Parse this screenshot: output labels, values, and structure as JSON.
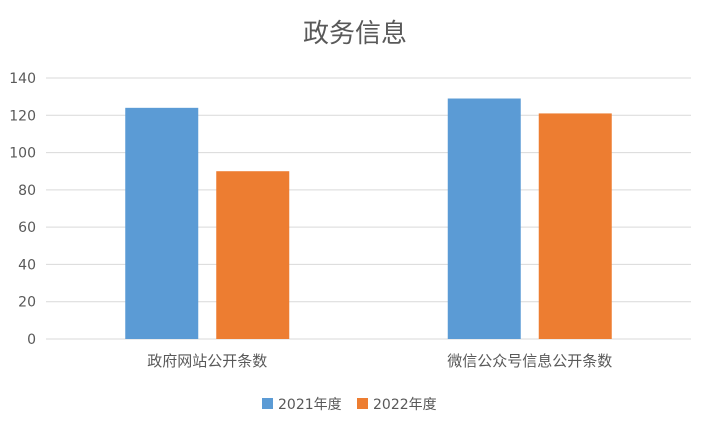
{
  "chart_data": {
    "type": "bar",
    "title": "政务信息",
    "categories": [
      "政府网站公开条数",
      "微信公众号信息公开条数"
    ],
    "series": [
      {
        "name": "2021年度",
        "values": [
          124,
          129
        ],
        "color": "#5b9bd5"
      },
      {
        "name": "2022年度",
        "values": [
          90,
          121
        ],
        "color": "#ed7d31"
      }
    ],
    "ylim": [
      0,
      140
    ],
    "yticks": [
      0,
      20,
      40,
      60,
      80,
      100,
      120,
      140
    ],
    "grid": true,
    "legend_position": "bottom",
    "xlabel": "",
    "ylabel": ""
  }
}
